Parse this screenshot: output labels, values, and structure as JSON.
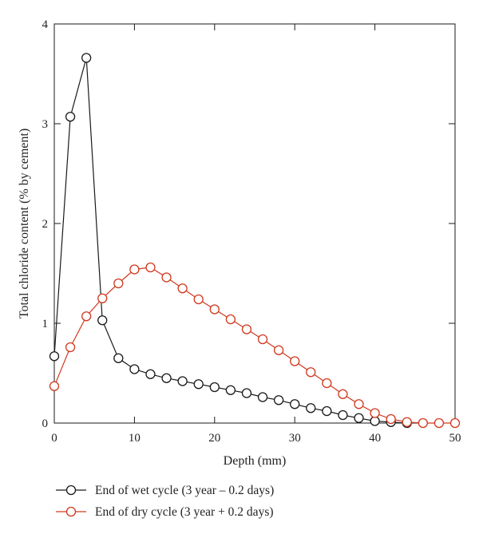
{
  "chart_data": {
    "type": "line",
    "title": "",
    "xlabel": "Depth (mm)",
    "ylabel": "Total chloride content (% by cement)",
    "xlim": [
      0,
      50
    ],
    "ylim": [
      0,
      4
    ],
    "xticks": [
      0,
      10,
      20,
      30,
      40,
      50
    ],
    "yticks": [
      0,
      1,
      2,
      3,
      4
    ],
    "grid": false,
    "legend_position": "bottom-left, below plot",
    "series": [
      {
        "name": "End of wet cycle (3 year – 0.2 days)",
        "color": "#1a1a1a",
        "marker": "open-circle",
        "x": [
          0,
          2,
          4,
          6,
          8,
          10,
          12,
          14,
          16,
          18,
          20,
          22,
          24,
          26,
          28,
          30,
          32,
          34,
          36,
          38,
          40,
          42,
          44
        ],
        "y": [
          0.67,
          3.07,
          3.66,
          1.03,
          0.65,
          0.54,
          0.49,
          0.45,
          0.42,
          0.39,
          0.36,
          0.33,
          0.3,
          0.26,
          0.23,
          0.19,
          0.15,
          0.12,
          0.08,
          0.05,
          0.02,
          0.01,
          0.0
        ]
      },
      {
        "name": "End of dry cycle (3 year + 0.2 days)",
        "color": "#d0391f",
        "marker": "open-circle",
        "x": [
          0,
          2,
          4,
          6,
          8,
          10,
          12,
          14,
          16,
          18,
          20,
          22,
          24,
          26,
          28,
          30,
          32,
          34,
          36,
          38,
          40,
          42,
          44,
          46,
          48,
          50
        ],
        "y": [
          0.37,
          0.76,
          1.07,
          1.25,
          1.4,
          1.54,
          1.56,
          1.46,
          1.35,
          1.24,
          1.14,
          1.04,
          0.94,
          0.84,
          0.73,
          0.62,
          0.51,
          0.4,
          0.29,
          0.19,
          0.1,
          0.04,
          0.01,
          0.0,
          0.0,
          0.0
        ]
      }
    ]
  }
}
